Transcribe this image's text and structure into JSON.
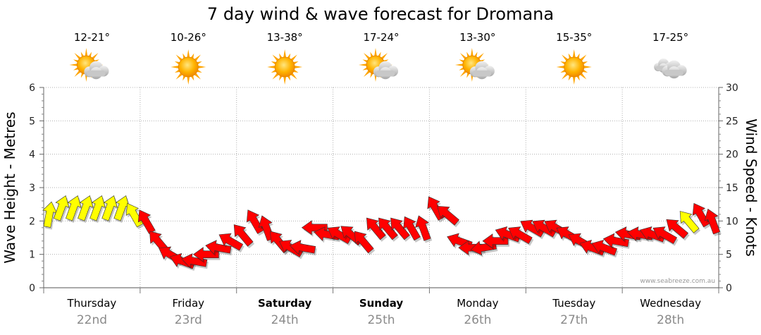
{
  "chart_data": {
    "type": "line",
    "title": "7 day wind & wave forecast for Dromana",
    "ylabel_left": "Wave Height - Metres",
    "ylabel_right": "Wind Speed - Knots",
    "ylim_left": [
      0,
      6
    ],
    "ylim_right": [
      0,
      30
    ],
    "yticks_left": [
      "0",
      "1",
      "2",
      "3",
      "4",
      "5",
      "6"
    ],
    "yticks_right": [
      "0",
      "5",
      "10",
      "15",
      "20",
      "25",
      "30"
    ],
    "grid": true,
    "days": [
      {
        "day": "Thursday",
        "date": "22nd",
        "temp": "12-21°",
        "icon": "partly-cloudy-icon",
        "bold": false
      },
      {
        "day": "Friday",
        "date": "23rd",
        "temp": "10-26°",
        "icon": "sun-icon",
        "bold": false
      },
      {
        "day": "Saturday",
        "date": "24th",
        "temp": "13-38°",
        "icon": "sun-icon",
        "bold": true
      },
      {
        "day": "Sunday",
        "date": "25th",
        "temp": "17-24°",
        "icon": "partly-cloudy-icon",
        "bold": true
      },
      {
        "day": "Monday",
        "date": "26th",
        "temp": "13-30°",
        "icon": "partly-cloudy-icon",
        "bold": false
      },
      {
        "day": "Tuesday",
        "date": "27th",
        "temp": "15-35°",
        "icon": "sun-icon",
        "bold": false
      },
      {
        "day": "Wednesday",
        "date": "28th",
        "temp": "17-25°",
        "icon": "cloudy-icon",
        "bold": false
      }
    ],
    "series": [
      {
        "name": "Wind Speed",
        "axis": "right",
        "x_hours": [
          0,
          3,
          6,
          9,
          12,
          15,
          18,
          21,
          24,
          27,
          30,
          33,
          36,
          39,
          42,
          45,
          48,
          51,
          54,
          57,
          60,
          63,
          66,
          69,
          72,
          75,
          78,
          81,
          84,
          87,
          90,
          93,
          96,
          99,
          102,
          105,
          108,
          111,
          114,
          117,
          120,
          123,
          126,
          129,
          132,
          135,
          138,
          141,
          144,
          147,
          150,
          153,
          156,
          159,
          162,
          165
        ],
        "values": [
          11,
          12,
          12,
          12,
          12,
          12,
          12,
          11,
          10,
          7,
          5,
          4,
          4,
          5,
          6,
          7,
          8,
          10,
          9,
          7,
          6,
          6,
          9,
          8,
          8,
          8,
          7,
          9,
          9,
          9,
          9,
          9,
          12,
          11,
          7,
          6,
          6,
          7,
          8,
          8,
          9,
          9,
          9,
          8,
          7,
          6,
          6,
          7,
          8,
          8,
          8,
          8,
          9,
          10,
          11,
          10
        ],
        "direction_deg": [
          10,
          20,
          20,
          20,
          20,
          20,
          20,
          330,
          330,
          320,
          300,
          290,
          280,
          270,
          280,
          300,
          320,
          330,
          340,
          320,
          300,
          280,
          270,
          280,
          300,
          310,
          320,
          320,
          320,
          320,
          330,
          340,
          330,
          310,
          290,
          270,
          260,
          270,
          290,
          300,
          300,
          300,
          300,
          300,
          300,
          290,
          290,
          280,
          280,
          280,
          290,
          300,
          310,
          320,
          330,
          340
        ],
        "colors": {
          "light": "#ffff00",
          "strong": "#ff0000"
        }
      }
    ],
    "credit": "www.seabreeze.com.au"
  }
}
